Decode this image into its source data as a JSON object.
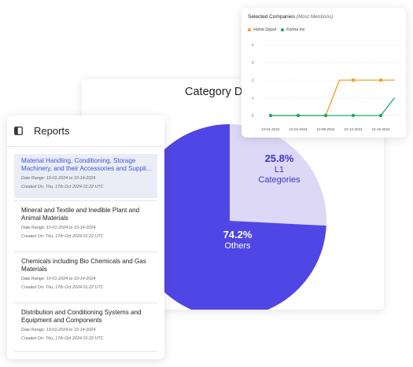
{
  "category_card": {
    "title": "Category Distribution",
    "slices": [
      {
        "pct": "25.8%",
        "name_line1": "L1",
        "name_line2": "Categories",
        "value": 25.8,
        "color": "#dcd8f5"
      },
      {
        "pct": "74.2%",
        "name_line1": "Others",
        "value": 74.2,
        "color": "#5046e5"
      }
    ]
  },
  "reports": {
    "title": "Reports",
    "items": [
      {
        "title": "Material Handling, Conditioning, Storage Machinery, and their Accessories and Suppli...",
        "date_range": "Date Range: 10-01-2024 to 10-14-2024",
        "created": "Created On: Thu, 17th Oct 2024 01:22 UTC",
        "active": true
      },
      {
        "title": "Mineral and Textile and Inedible Plant and Animal Materials",
        "date_range": "Date Range: 10-01-2024 to 10-14-2024",
        "created": "Created On: Thu, 17th Oct 2024 01:22 UTC",
        "active": false
      },
      {
        "title": "Chemicals including Bio Chemicals and Gas Materials",
        "date_range": "Date Range: 10-01-2024 to 10-14-2024",
        "created": "Created On: Thu, 17th Oct 2024 01:22 UTC",
        "active": false
      },
      {
        "title": "Distribution and Conditioning Systems and Equipment and Components",
        "date_range": "Date Range: 10-01-2024 to 10-14-2024",
        "created": "Created On: Thu, 17th Oct 2024 01:22 UTC",
        "active": false
      }
    ]
  },
  "companies_card": {
    "title": "Selected Companies",
    "subtitle": "(Most Mentions)"
  },
  "chart_data": [
    {
      "type": "pie",
      "title": "Category Distribution",
      "labels": [
        "L1 Categories",
        "Others"
      ],
      "values": [
        25.8,
        74.2
      ],
      "colors": [
        "#dcd8f5",
        "#5046e5"
      ]
    },
    {
      "type": "line",
      "title": "Selected Companies (Most Mentions)",
      "x": [
        "10-01-2024",
        "10-04-2024",
        "10-08-2024",
        "10-12-2024",
        "10-16-2024"
      ],
      "y_ticks": [
        0,
        1,
        2,
        3,
        4
      ],
      "ylim": [
        0,
        4
      ],
      "legend": "top-left",
      "series": [
        {
          "name": "Home Depot",
          "color": "#f59a23",
          "x": [
            0,
            1,
            2,
            2.5,
            3,
            4,
            4.5
          ],
          "values": [
            0,
            0,
            0,
            2,
            2,
            2,
            2
          ]
        },
        {
          "name": "Fortna Inc.",
          "color": "#1aaa6b",
          "x": [
            0,
            1,
            2,
            3,
            4,
            4.5
          ],
          "values": [
            0,
            0,
            0,
            0,
            0,
            1
          ]
        }
      ]
    }
  ]
}
